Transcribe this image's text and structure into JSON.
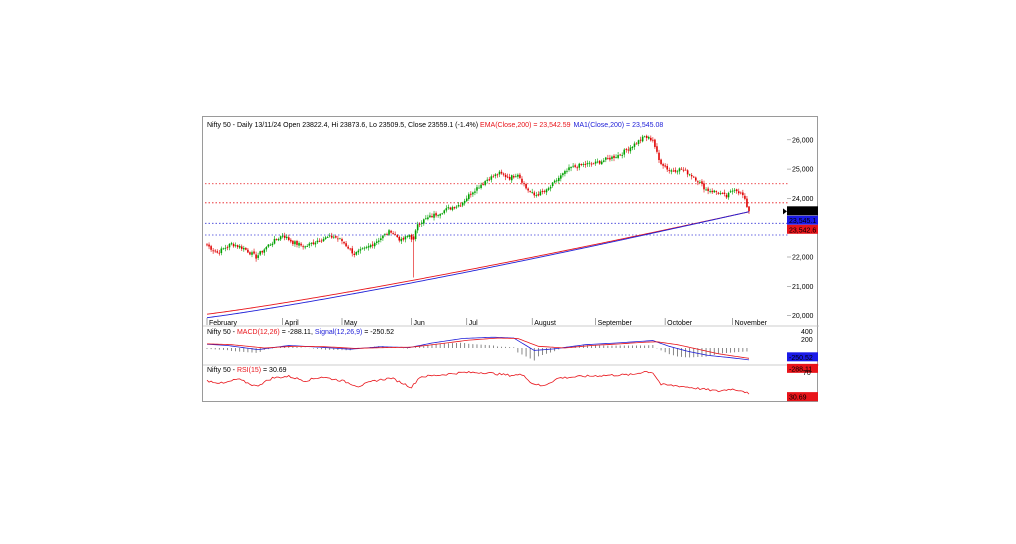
{
  "chart_data": [
    {
      "type": "candlestick",
      "panel": "price",
      "header": {
        "prefix": "Nifty 50 - Daily 13/11/24 Open 23822.4, Hi 23873.6, Lo 23509.5, Close 23559.1 (-1.4%) ",
        "ema_text": "EMA(Close,200) = 23,542.59",
        "ma_text": "MA1(Close,200) = 23,545.08"
      },
      "y_ticks": [
        20000,
        21000,
        22000,
        23000,
        24000,
        25000,
        26000
      ],
      "y_tick_labels": [
        "20,000",
        "21,000",
        "22,000",
        "23,000",
        "24,000",
        "25,000",
        "26,000"
      ],
      "ylim": [
        19850,
        26300
      ],
      "x_months": [
        "February",
        "April",
        "May",
        "Jun",
        "Jul",
        "August",
        "September",
        "October",
        "November"
      ],
      "x_month_positions": [
        0,
        37,
        66,
        100,
        127,
        159,
        190,
        224,
        257
      ],
      "n_bars": 266,
      "close_anchors": [
        [
          0,
          22400
        ],
        [
          5,
          22150
        ],
        [
          12,
          22450
        ],
        [
          18,
          22300
        ],
        [
          24,
          22000
        ],
        [
          30,
          22400
        ],
        [
          37,
          22750
        ],
        [
          42,
          22500
        ],
        [
          48,
          22350
        ],
        [
          55,
          22600
        ],
        [
          62,
          22700
        ],
        [
          66,
          22550
        ],
        [
          72,
          22100
        ],
        [
          78,
          22300
        ],
        [
          84,
          22600
        ],
        [
          90,
          22900
        ],
        [
          95,
          22550
        ],
        [
          99,
          22750
        ],
        [
          101,
          22550
        ],
        [
          103,
          23150
        ],
        [
          110,
          23400
        ],
        [
          118,
          23650
        ],
        [
          124,
          23800
        ],
        [
          130,
          24250
        ],
        [
          137,
          24650
        ],
        [
          143,
          24850
        ],
        [
          148,
          24700
        ],
        [
          152,
          24850
        ],
        [
          156,
          24350
        ],
        [
          160,
          24100
        ],
        [
          166,
          24250
        ],
        [
          172,
          24700
        ],
        [
          178,
          25050
        ],
        [
          184,
          25150
        ],
        [
          190,
          25200
        ],
        [
          196,
          25350
        ],
        [
          202,
          25500
        ],
        [
          208,
          25800
        ],
        [
          214,
          26100
        ],
        [
          218,
          26000
        ],
        [
          221,
          25300
        ],
        [
          226,
          24950
        ],
        [
          232,
          25000
        ],
        [
          238,
          24750
        ],
        [
          244,
          24300
        ],
        [
          250,
          24200
        ],
        [
          254,
          24050
        ],
        [
          258,
          24350
        ],
        [
          262,
          24100
        ],
        [
          265,
          23559
        ]
      ],
      "overlays": [
        {
          "name": "EMA(Close,200)",
          "color": "#e8141a",
          "start": 20050,
          "end": 23542.59
        },
        {
          "name": "MA1(Close,200)",
          "color": "#2020d8",
          "start": 19930,
          "end": 23545.08
        }
      ],
      "horizontal_levels": [
        {
          "value": 24500,
          "color": "#e8141a"
        },
        {
          "value": 23850,
          "color": "#e8141a"
        },
        {
          "value": 23150,
          "color": "#3a3ad8"
        },
        {
          "value": 22750,
          "color": "#3a3ad8"
        }
      ],
      "value_tags": [
        {
          "text": "23,559.1",
          "bg": "#000000",
          "fg": "#ffffff"
        },
        {
          "text": "23,545.1",
          "bg": "#1a1ae8",
          "fg": "#ffffff"
        },
        {
          "text": "23,542.6",
          "bg": "#e8141a",
          "fg": "#e8141a"
        }
      ]
    },
    {
      "type": "line",
      "panel": "macd",
      "header": {
        "prefix": "Nifty 50 - ",
        "macd_text": "MACD(12,26)",
        "macd_value": " = -288.11, ",
        "signal_text": "Signal(12,26,9)",
        "signal_value": " = -250.52"
      },
      "y_ticks": [
        400,
        200
      ],
      "y_tick_labels": [
        "400",
        "200"
      ],
      "ylim": [
        -340,
        460
      ],
      "macd_anchors": [
        [
          0,
          90
        ],
        [
          10,
          60
        ],
        [
          25,
          -40
        ],
        [
          40,
          60
        ],
        [
          55,
          20
        ],
        [
          70,
          -30
        ],
        [
          85,
          30
        ],
        [
          99,
          10
        ],
        [
          110,
          120
        ],
        [
          125,
          230
        ],
        [
          140,
          260
        ],
        [
          150,
          240
        ],
        [
          160,
          -60
        ],
        [
          170,
          -20
        ],
        [
          185,
          80
        ],
        [
          200,
          120
        ],
        [
          212,
          160
        ],
        [
          218,
          180
        ],
        [
          226,
          40
        ],
        [
          235,
          -80
        ],
        [
          245,
          -180
        ],
        [
          255,
          -230
        ],
        [
          265,
          -288.11
        ]
      ],
      "signal_anchors": [
        [
          0,
          100
        ],
        [
          12,
          80
        ],
        [
          28,
          0
        ],
        [
          42,
          40
        ],
        [
          58,
          30
        ],
        [
          72,
          -10
        ],
        [
          88,
          10
        ],
        [
          100,
          20
        ],
        [
          112,
          90
        ],
        [
          128,
          190
        ],
        [
          142,
          240
        ],
        [
          152,
          230
        ],
        [
          162,
          40
        ],
        [
          175,
          0
        ],
        [
          188,
          60
        ],
        [
          202,
          100
        ],
        [
          214,
          140
        ],
        [
          220,
          150
        ],
        [
          230,
          80
        ],
        [
          240,
          -30
        ],
        [
          250,
          -140
        ],
        [
          258,
          -200
        ],
        [
          265,
          -250.52
        ]
      ],
      "value_tags": [
        {
          "text": "-250.52",
          "bg": "#1a1ae8",
          "fg": "#ffffff"
        },
        {
          "text": "-288.11",
          "bg": "#e8141a",
          "fg": "#e8141a"
        }
      ]
    },
    {
      "type": "line",
      "panel": "rsi",
      "header": {
        "prefix": "Nifty 50 - ",
        "rsi_text": "RSI(15)",
        "rsi_value": " = 30.69"
      },
      "y_ticks": [
        70
      ],
      "y_tick_labels": [
        "70"
      ],
      "ylim": [
        20,
        80
      ],
      "rsi_anchors": [
        [
          0,
          55
        ],
        [
          8,
          50
        ],
        [
          15,
          58
        ],
        [
          24,
          45
        ],
        [
          32,
          60
        ],
        [
          40,
          63
        ],
        [
          48,
          55
        ],
        [
          56,
          62
        ],
        [
          66,
          55
        ],
        [
          74,
          45
        ],
        [
          82,
          55
        ],
        [
          90,
          60
        ],
        [
          96,
          50
        ],
        [
          100,
          43
        ],
        [
          104,
          62
        ],
        [
          115,
          66
        ],
        [
          125,
          70
        ],
        [
          135,
          70
        ],
        [
          148,
          65
        ],
        [
          155,
          66
        ],
        [
          158,
          52
        ],
        [
          164,
          45
        ],
        [
          172,
          60
        ],
        [
          184,
          63
        ],
        [
          196,
          65
        ],
        [
          208,
          66
        ],
        [
          214,
          72
        ],
        [
          218,
          70
        ],
        [
          222,
          48
        ],
        [
          232,
          45
        ],
        [
          242,
          40
        ],
        [
          250,
          36
        ],
        [
          256,
          40
        ],
        [
          262,
          37
        ],
        [
          265,
          30.69
        ]
      ],
      "value_tags": [
        {
          "text": "30.69",
          "bg": "#e8141a",
          "fg": "#e8141a"
        }
      ]
    }
  ],
  "colors": {
    "up_candle": "#00a000",
    "down_candle": "#e00000",
    "ema": "#e8141a",
    "ma": "#2020d8",
    "macd": "#2020d8",
    "signal": "#e8141a",
    "rsi": "#e8141a",
    "histogram": "#555555",
    "frame": "#9a9a9a"
  }
}
